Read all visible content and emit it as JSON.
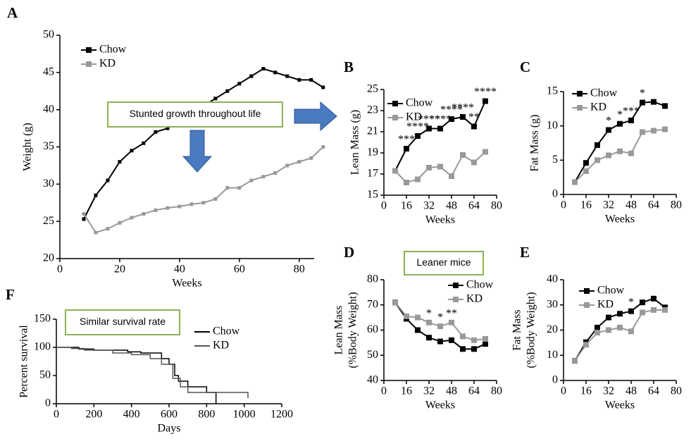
{
  "chart_data": [
    {
      "type": "line",
      "panel_label": "A",
      "xlabel": "Weeks",
      "ylabel": [
        "Weight (g)"
      ],
      "annotation": "Stunted growth throughout life",
      "x": [
        8,
        12,
        16,
        20,
        24,
        28,
        32,
        36,
        40,
        44,
        48,
        52,
        56,
        60,
        64,
        68,
        72,
        76,
        80,
        84,
        88
      ],
      "series": [
        {
          "name": "Chow",
          "color": "#000000",
          "values": [
            25.3,
            28.5,
            30.5,
            33,
            34.5,
            35.5,
            37,
            37.5,
            38.5,
            39.5,
            40.5,
            41.5,
            42.5,
            43.5,
            44.5,
            45.5,
            45,
            44.5,
            44,
            44,
            43
          ]
        },
        {
          "name": "KD",
          "color": "#999999",
          "values": [
            26,
            23.5,
            24,
            24.8,
            25.5,
            26,
            26.5,
            26.8,
            27,
            27.3,
            27.5,
            28,
            29.5,
            29.5,
            30.5,
            31,
            31.5,
            32.5,
            33,
            33.5,
            35
          ]
        }
      ],
      "xlim": [
        0,
        85
      ],
      "xticks": [
        0,
        20,
        40,
        60,
        80
      ],
      "ylim": [
        20,
        50
      ],
      "yticks": [
        20,
        25,
        30,
        35,
        40,
        45,
        50
      ]
    },
    {
      "type": "line",
      "panel_label": "B",
      "xlabel": "Weeks",
      "ylabel": [
        "Lean Mass (g)"
      ],
      "x": [
        8,
        16,
        24,
        32,
        40,
        48,
        56,
        64,
        72
      ],
      "series": [
        {
          "name": "Chow",
          "color": "#000000",
          "values": [
            17.3,
            19.4,
            20.6,
            21.3,
            21.3,
            22.2,
            22.4,
            21.5,
            23.9
          ]
        },
        {
          "name": "KD",
          "color": "#999999",
          "values": [
            17.3,
            16.2,
            16.5,
            17.6,
            17.7,
            16.8,
            18.8,
            18.1,
            19.1
          ]
        }
      ],
      "significance": [
        null,
        "***",
        "****",
        "****",
        "****",
        "****",
        "****",
        "**",
        "****"
      ],
      "xlim": [
        0,
        80
      ],
      "xticks": [
        0,
        16,
        32,
        48,
        64,
        80
      ],
      "ylim": [
        15,
        25
      ],
      "yticks": [
        15,
        17,
        19,
        21,
        23,
        25
      ]
    },
    {
      "type": "line",
      "panel_label": "C",
      "xlabel": "Weeks",
      "ylabel": [
        "Fat Mass (g)"
      ],
      "x": [
        8,
        16,
        24,
        32,
        40,
        48,
        56,
        64,
        72
      ],
      "series": [
        {
          "name": "Chow",
          "color": "#000000",
          "values": [
            1.8,
            4.6,
            7.2,
            9.4,
            10.3,
            10.8,
            13.4,
            13.5,
            12.9
          ]
        },
        {
          "name": "KD",
          "color": "#999999",
          "values": [
            1.8,
            3.4,
            5.0,
            5.7,
            6.3,
            6.0,
            9.1,
            9.3,
            9.5
          ]
        }
      ],
      "significance": [
        null,
        null,
        null,
        "*",
        "*",
        "***",
        "*",
        null,
        null
      ],
      "xlim": [
        0,
        80
      ],
      "xticks": [
        0,
        16,
        32,
        48,
        64,
        80
      ],
      "ylim": [
        0,
        15
      ],
      "yticks": [
        0,
        5,
        10,
        15
      ]
    },
    {
      "type": "line",
      "panel_label": "D",
      "xlabel": "Weeks",
      "ylabel": [
        "Lean Mass",
        "(%Body Weight)"
      ],
      "annotation": "Leaner mice",
      "x": [
        8,
        16,
        24,
        32,
        40,
        48,
        56,
        64,
        72
      ],
      "series": [
        {
          "name": "Chow",
          "color": "#000000",
          "values": [
            71,
            64.5,
            60,
            57,
            55.5,
            56,
            52.5,
            52.5,
            54.5
          ]
        },
        {
          "name": "KD",
          "color": "#999999",
          "values": [
            71,
            65.5,
            65,
            63,
            61.5,
            63,
            57.5,
            56,
            56.5
          ]
        }
      ],
      "significance": [
        null,
        null,
        null,
        "*",
        "*",
        "**",
        null,
        null,
        null
      ],
      "xlim": [
        0,
        80
      ],
      "xticks": [
        0,
        16,
        32,
        48,
        64,
        80
      ],
      "ylim": [
        40,
        80
      ],
      "yticks": [
        40,
        50,
        60,
        70,
        80
      ]
    },
    {
      "type": "line",
      "panel_label": "E",
      "xlabel": "Weeks",
      "ylabel": [
        "Fat Mass",
        "(%Body Weight)"
      ],
      "x": [
        8,
        16,
        24,
        32,
        40,
        48,
        56,
        64,
        72
      ],
      "series": [
        {
          "name": "Chow",
          "color": "#000000",
          "values": [
            7.8,
            15.2,
            21,
            25,
            26.5,
            27.5,
            31,
            32.5,
            29
          ]
        },
        {
          "name": "KD",
          "color": "#999999",
          "values": [
            7.8,
            14.2,
            19,
            20,
            21,
            19.5,
            27,
            28,
            28
          ]
        }
      ],
      "significance": [
        null,
        null,
        null,
        null,
        null,
        "*",
        null,
        null,
        null
      ],
      "xlim": [
        0,
        80
      ],
      "xticks": [
        0,
        16,
        32,
        48,
        64,
        80
      ],
      "ylim": [
        0,
        40
      ],
      "yticks": [
        0,
        10,
        20,
        30,
        40
      ]
    },
    {
      "type": "step",
      "panel_label": "F",
      "xlabel": "Days",
      "ylabel": [
        "Percent survival"
      ],
      "annotation": "Similar survival rate",
      "series": [
        {
          "name": "Chow",
          "color": "#000000",
          "x": [
            0,
            120,
            200,
            380,
            450,
            560,
            600,
            630,
            650,
            700,
            800,
            850
          ],
          "values": [
            100,
            97,
            95,
            92,
            90,
            80,
            70,
            50,
            40,
            30,
            20,
            0
          ]
        },
        {
          "name": "KD",
          "color": "#555555",
          "x": [
            0,
            80,
            150,
            300,
            400,
            500,
            560,
            620,
            660,
            700,
            1020
          ],
          "values": [
            100,
            98,
            95,
            90,
            87,
            80,
            70,
            45,
            30,
            20,
            10
          ]
        }
      ],
      "xlim": [
        0,
        1200
      ],
      "xticks": [
        0,
        200,
        400,
        600,
        800,
        1000,
        1200
      ],
      "ylim": [
        0,
        150
      ],
      "yticks": [
        0,
        50,
        100,
        150
      ]
    }
  ]
}
